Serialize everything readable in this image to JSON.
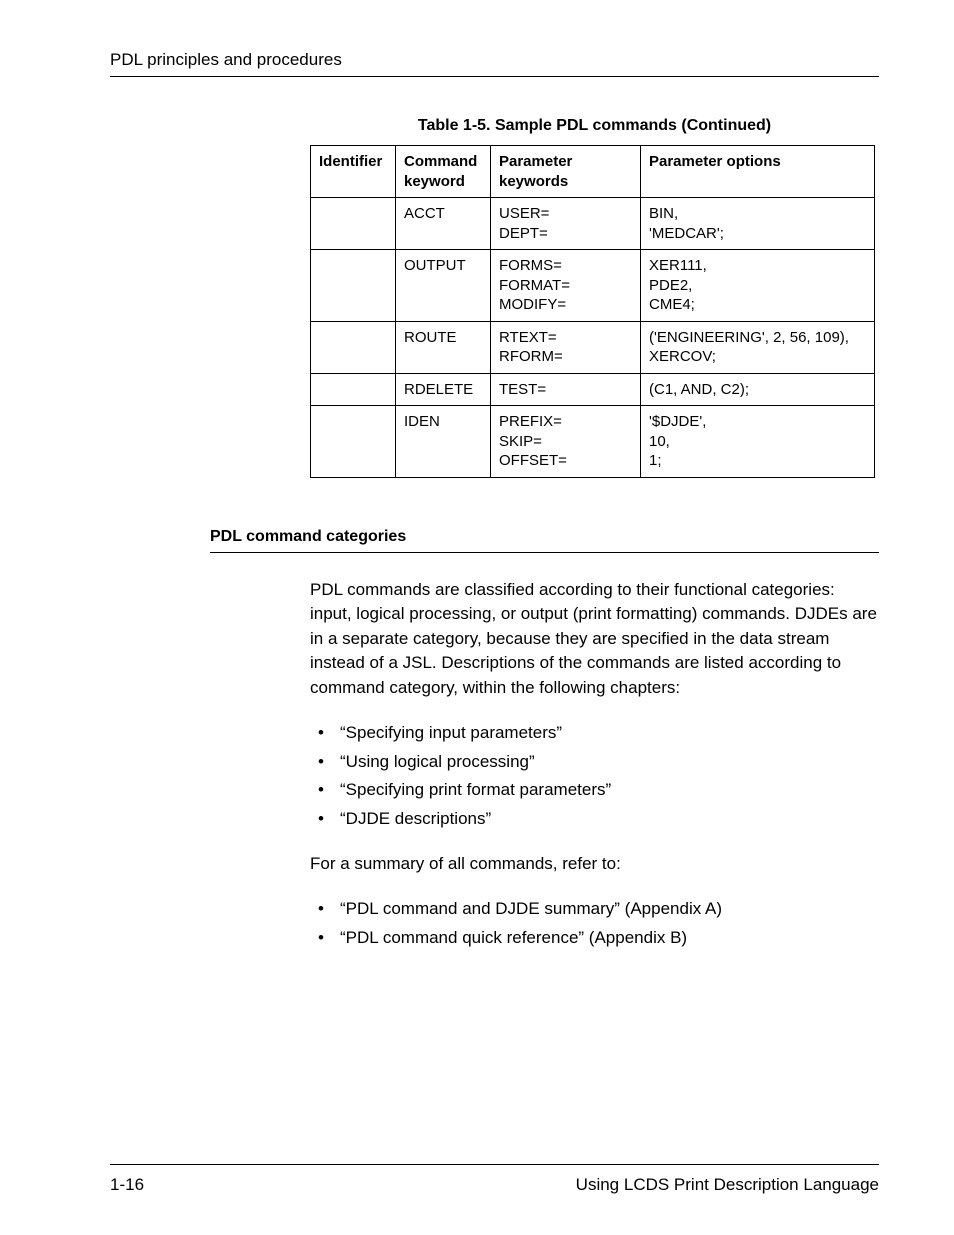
{
  "header": {
    "title": "PDL principles and procedures"
  },
  "table": {
    "caption": "Table 1-5. Sample PDL commands (Continued)",
    "columns": [
      "Identifier",
      "Command keyword",
      "Parameter keywords",
      "Parameter options"
    ],
    "rows": [
      {
        "id": "",
        "cmd": "ACCT",
        "parm": "USER=\nDEPT=",
        "opt": "BIN,\n'MEDCAR';"
      },
      {
        "id": "",
        "cmd": "OUTPUT",
        "parm": "FORMS=\nFORMAT=\nMODIFY=",
        "opt": "XER111,\nPDE2,\nCME4;"
      },
      {
        "id": "",
        "cmd": "ROUTE",
        "parm": "RTEXT=\nRFORM=",
        "opt": "('ENGINEERING', 2, 56, 109),\nXERCOV;"
      },
      {
        "id": "",
        "cmd": "RDELETE",
        "parm": "TEST=",
        "opt": "(C1, AND, C2);"
      },
      {
        "id": "",
        "cmd": "IDEN",
        "parm": "PREFIX=\nSKIP=\nOFFSET=",
        "opt": "'$DJDE',\n10,\n1;"
      }
    ]
  },
  "section": {
    "heading": "PDL command categories",
    "para": "PDL commands are classified according to their functional categories: input, logical processing, or output (print formatting) commands. DJDEs are in a separate category, because they are specified in the data stream instead of a JSL. Descriptions of the commands are listed according to command category, within the following chapters:",
    "list1": [
      "“Specifying input parameters”",
      "“Using logical processing”",
      "“Specifying print format parameters”",
      "“DJDE descriptions”"
    ],
    "para2": "For a summary of all commands, refer to:",
    "list2": [
      "“PDL command and DJDE summary” (Appendix A)",
      "“PDL command quick reference” (Appendix B)"
    ]
  },
  "footer": {
    "page": "1-16",
    "title": "Using LCDS Print Description Language"
  }
}
